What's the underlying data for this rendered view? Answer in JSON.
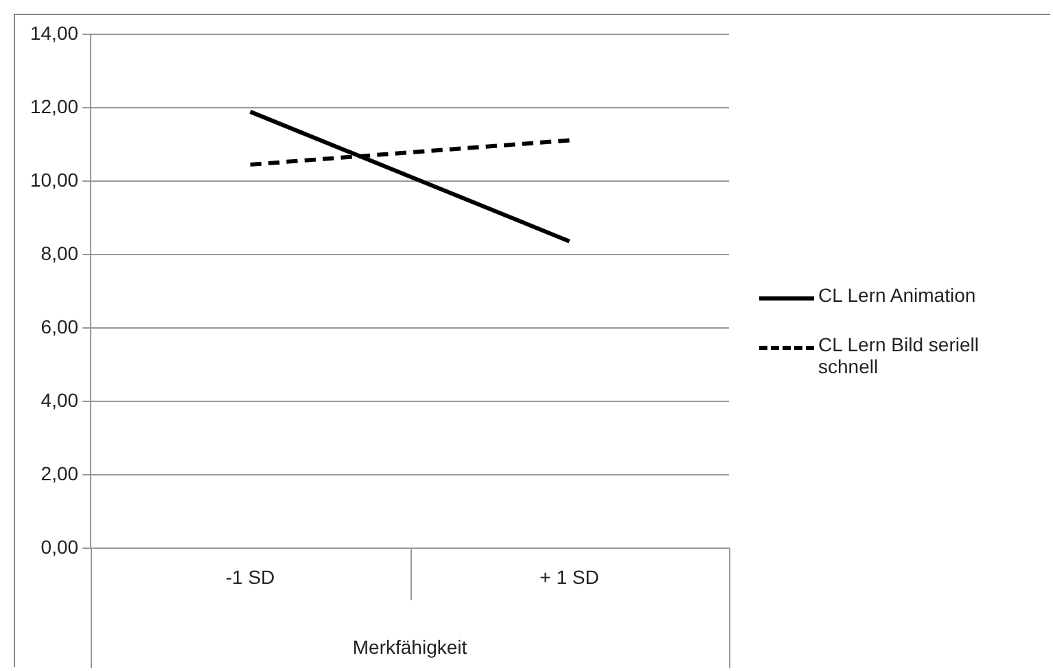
{
  "chart_data": {
    "type": "line",
    "xlabel": "Merkfähigkeit",
    "categories": [
      "-1 SD",
      "+ 1 SD"
    ],
    "series": [
      {
        "name": "CL Lern Animation",
        "color": "#000000",
        "values": [
          11.89,
          8.36
        ],
        "line_style": "solid"
      },
      {
        "name": "CL Lern Bild seriell schnell",
        "color": "#000000",
        "values": [
          10.45,
          11.11
        ],
        "line_style": "dashed"
      }
    ],
    "ylim": [
      0,
      14
    ],
    "yticks": [
      {
        "value": 0,
        "label": "0,00"
      },
      {
        "value": 2,
        "label": "2,00"
      },
      {
        "value": 4,
        "label": "4,00"
      },
      {
        "value": 6,
        "label": "6,00"
      },
      {
        "value": 8,
        "label": "8,00"
      },
      {
        "value": 10,
        "label": "10,00"
      },
      {
        "value": 12,
        "label": "12,00"
      },
      {
        "value": 14,
        "label": "14,00"
      }
    ],
    "grid": "y",
    "legend": "right",
    "marker": "none"
  }
}
